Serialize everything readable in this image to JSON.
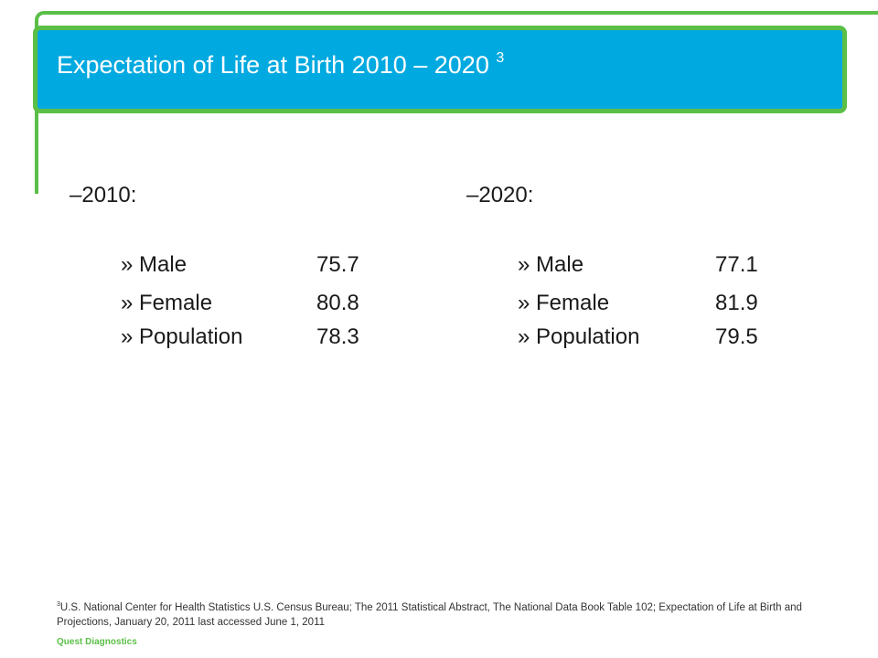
{
  "slide": {
    "title": "Expectation of Life at Birth 2010 – 2020",
    "title_ref": "3"
  },
  "columns": [
    {
      "heading": "–2010:",
      "items": [
        {
          "label": "» Male",
          "value": "75.7"
        },
        {
          "label": "» Female",
          "value": "80.8"
        },
        {
          "label": "» Population",
          "value": "78.3"
        }
      ]
    },
    {
      "heading": "–2020:",
      "items": [
        {
          "label": "» Male",
          "value": "77.1"
        },
        {
          "label": "» Female",
          "value": "81.9"
        },
        {
          "label": "» Population",
          "value": "79.5"
        }
      ]
    }
  ],
  "footnote": {
    "ref": "3",
    "text": "U.S. National Center for Health Statistics U.S. Census Bureau; The 2011 Statistical Abstract, The National Data Book Table 102; Expectation of Life at Birth and Projections, January 20, 2011 last accessed June 1, 2011"
  },
  "brand": "Quest Diagnostics",
  "colors": {
    "accent_green": "#5bbf47",
    "title_blue": "#00a9e0"
  }
}
